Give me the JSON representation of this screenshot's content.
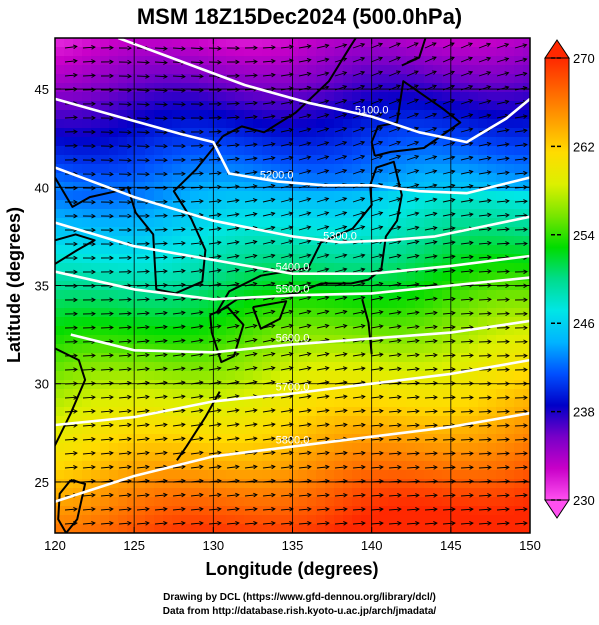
{
  "title": "MSM 18Z15Dec2024 (500.0hPa)",
  "credits": {
    "line1": "Drawing by DCL (https://www.gfd-dennou.org/library/dcl/)",
    "line2": "Data from http://database.rish.kyoto-u.ac.jp/arch/jmadata/"
  },
  "axes": {
    "xlabel": "Longitude (degrees)",
    "ylabel": "Latitude  (degrees)",
    "xlim": [
      120,
      150
    ],
    "ylim": [
      22.4,
      47.6
    ],
    "xticks": [
      120,
      125,
      130,
      135,
      140,
      145,
      150
    ],
    "yticks": [
      25,
      30,
      35,
      40,
      45
    ]
  },
  "colorbar": {
    "min": 230,
    "max": 270,
    "ticks": [
      230,
      238,
      246,
      254,
      262,
      270
    ],
    "colors": [
      "#ff50f0",
      "#c800c8",
      "#7800c8",
      "#0000c8",
      "#0050ff",
      "#00b4ff",
      "#00e6e6",
      "#00dc8c",
      "#00dc00",
      "#78e600",
      "#dcf000",
      "#ffdc00",
      "#ffa000",
      "#ff6400",
      "#ff2800"
    ]
  },
  "contours": [
    {
      "label": "5100.0",
      "points": [
        [
          124,
          47.6
        ],
        [
          128,
          46.4
        ],
        [
          132,
          45.2
        ],
        [
          136,
          44.3
        ],
        [
          140,
          43.6
        ],
        [
          143,
          42.8
        ],
        [
          146,
          42.3
        ],
        [
          148.5,
          43.5
        ],
        [
          150,
          44.5
        ]
      ]
    },
    {
      "label": "5200.0",
      "points": [
        [
          120,
          44.5
        ],
        [
          124,
          43.6
        ],
        [
          128,
          42.7
        ],
        [
          130,
          42.3
        ],
        [
          131,
          40.7
        ],
        [
          134,
          40.3
        ],
        [
          137,
          40.1
        ],
        [
          140,
          40.1
        ],
        [
          143,
          39.8
        ],
        [
          146,
          39.7
        ],
        [
          150,
          40.5
        ]
      ]
    },
    {
      "label": "5300.0",
      "points": [
        [
          120,
          41
        ],
        [
          125,
          39.5
        ],
        [
          130,
          38.3
        ],
        [
          135,
          37.5
        ],
        [
          138,
          37.2
        ],
        [
          141,
          37.3
        ],
        [
          144,
          37.5
        ],
        [
          147,
          38
        ],
        [
          150,
          38.5
        ]
      ]
    },
    {
      "label": "5400.0",
      "points": [
        [
          120,
          38.2
        ],
        [
          125,
          37
        ],
        [
          130,
          36.3
        ],
        [
          135,
          35.6
        ],
        [
          140,
          35.6
        ],
        [
          145,
          36
        ],
        [
          150,
          36.5
        ]
      ]
    },
    {
      "label": "5500.0",
      "points": [
        [
          120,
          35.7
        ],
        [
          125,
          34.8
        ],
        [
          130,
          34.3
        ],
        [
          135,
          34.5
        ],
        [
          140,
          34.6
        ],
        [
          145,
          35
        ],
        [
          150,
          35.4
        ]
      ]
    },
    {
      "label": "5600.0",
      "points": [
        [
          121,
          32.5
        ],
        [
          125,
          31.7
        ],
        [
          130,
          31.6
        ],
        [
          135,
          32
        ],
        [
          140,
          32.3
        ],
        [
          145,
          32.6
        ],
        [
          150,
          33.2
        ]
      ]
    },
    {
      "label": "5700.0",
      "points": [
        [
          120,
          27.9
        ],
        [
          125,
          28.3
        ],
        [
          130,
          29.1
        ],
        [
          135,
          29.5
        ],
        [
          140,
          30
        ],
        [
          145,
          30.5
        ],
        [
          150,
          31.2
        ]
      ]
    },
    {
      "label": "5800.0",
      "points": [
        [
          120,
          24
        ],
        [
          125,
          25.3
        ],
        [
          130,
          26.3
        ],
        [
          135,
          26.8
        ],
        [
          140,
          27.3
        ],
        [
          145,
          27.8
        ],
        [
          150,
          28.5
        ]
      ]
    }
  ],
  "colors": {
    "contour": "#ffffff",
    "arrow": "#000000",
    "coast": "#000000"
  }
}
